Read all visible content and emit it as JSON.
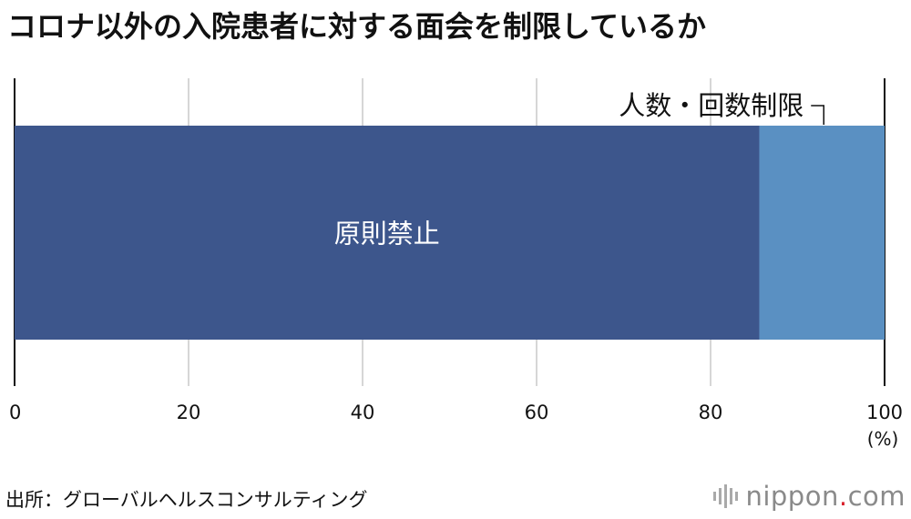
{
  "title": "コロナ以外の入院患者に対する面会を制限しているか",
  "source": "出所：グローバルヘルスコンサルティング",
  "logo": {
    "name": "nippon",
    "dot": ".",
    "tld": "com",
    "dot_color": "#d9232e"
  },
  "chart_data": {
    "type": "bar",
    "orientation": "horizontal",
    "stacked": true,
    "unit_label": "(%)",
    "xlim": [
      0,
      100
    ],
    "xticks": [
      0,
      20,
      40,
      60,
      80,
      100
    ],
    "grid": true,
    "series": [
      {
        "name": "原則禁止",
        "value": 85.6,
        "color": "#3d568c",
        "label_position": "inside"
      },
      {
        "name": "人数・回数制限",
        "value": 14.4,
        "color": "#5a90c2",
        "label_position": "callout-above"
      }
    ]
  }
}
